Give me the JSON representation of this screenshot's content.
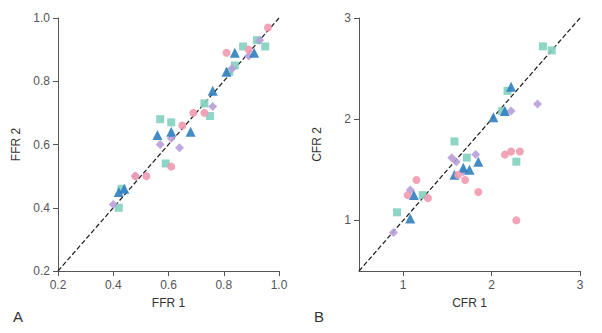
{
  "chart_data": [
    {
      "type": "scatter",
      "title": "A",
      "xlabel": "FFR 1",
      "ylabel": "FFR 2",
      "xlim": [
        0.2,
        1.0
      ],
      "ylim": [
        0.2,
        1.0
      ],
      "xticks": [
        0.2,
        0.4,
        0.6,
        0.8,
        {
          "value": 1.0,
          "label": "1.0"
        }
      ],
      "yticks": [
        0.2,
        0.4,
        0.6,
        0.8,
        {
          "value": 1.0,
          "label": "1.0"
        }
      ],
      "grid": false,
      "series": [
        {
          "type": "line",
          "line_style": "dashed",
          "color": "#1a1a1a",
          "x": [
            0.2,
            1.0
          ],
          "values": [
            0.2,
            1.0
          ]
        },
        {
          "type": "scatter",
          "marker": "square",
          "color": "#82d0c0",
          "x": [
            0.42,
            0.43,
            0.57,
            0.59,
            0.61,
            0.73,
            0.75,
            0.82,
            0.84,
            0.87,
            0.92,
            0.95
          ],
          "values": [
            0.4,
            0.46,
            0.68,
            0.54,
            0.67,
            0.73,
            0.69,
            0.83,
            0.85,
            0.91,
            0.93,
            0.91
          ]
        },
        {
          "type": "scatter",
          "marker": "diamond",
          "color": "#b8a0d8",
          "x": [
            0.4,
            0.48,
            0.57,
            0.61,
            0.64,
            0.76,
            0.83,
            0.89,
            0.93
          ],
          "values": [
            0.41,
            0.5,
            0.6,
            0.62,
            0.59,
            0.72,
            0.84,
            0.88,
            0.93
          ]
        },
        {
          "type": "scatter",
          "marker": "triangle",
          "color": "#3080c0",
          "x": [
            0.42,
            0.44,
            0.56,
            0.61,
            0.68,
            0.76,
            0.81,
            0.84,
            0.91
          ],
          "values": [
            0.45,
            0.46,
            0.63,
            0.64,
            0.64,
            0.77,
            0.83,
            0.89,
            0.89
          ]
        },
        {
          "type": "scatter",
          "marker": "circle",
          "color": "#f09ab0",
          "x": [
            0.48,
            0.52,
            0.61,
            0.65,
            0.69,
            0.73,
            0.81,
            0.89,
            0.96
          ],
          "values": [
            0.5,
            0.5,
            0.53,
            0.66,
            0.7,
            0.7,
            0.89,
            0.9,
            0.97
          ]
        }
      ]
    },
    {
      "type": "scatter",
      "title": "B",
      "xlabel": "CFR 1",
      "ylabel": "CFR 2",
      "xlim": [
        0.5,
        3.0
      ],
      "ylim": [
        0.5,
        3.0
      ],
      "xticks": [
        1,
        2,
        3
      ],
      "yticks": [
        1,
        2,
        3
      ],
      "grid": false,
      "series": [
        {
          "type": "line",
          "line_style": "dashed",
          "color": "#1a1a1a",
          "x": [
            0.5,
            3.0
          ],
          "values": [
            0.5,
            3.0
          ]
        },
        {
          "type": "scatter",
          "marker": "square",
          "color": "#82d0c0",
          "x": [
            0.93,
            1.22,
            1.58,
            1.72,
            2.12,
            2.18,
            2.28,
            2.58,
            2.68
          ],
          "values": [
            1.08,
            1.25,
            1.78,
            1.62,
            2.08,
            2.28,
            1.58,
            2.72,
            2.68
          ]
        },
        {
          "type": "scatter",
          "marker": "diamond",
          "color": "#b8a0d8",
          "x": [
            0.89,
            1.08,
            1.55,
            1.6,
            1.68,
            1.82,
            2.22,
            2.52
          ],
          "values": [
            0.88,
            1.3,
            1.62,
            1.58,
            1.48,
            1.65,
            2.08,
            2.15
          ]
        },
        {
          "type": "scatter",
          "marker": "triangle",
          "color": "#3080c0",
          "x": [
            1.08,
            1.12,
            1.58,
            1.68,
            1.75,
            1.85,
            2.02,
            2.15,
            2.22
          ],
          "values": [
            1.02,
            1.25,
            1.45,
            1.52,
            1.5,
            1.58,
            2.02,
            2.08,
            2.32
          ]
        },
        {
          "type": "scatter",
          "marker": "circle",
          "color": "#f09ab0",
          "x": [
            1.05,
            1.15,
            1.28,
            1.62,
            1.7,
            1.85,
            2.15,
            2.22,
            2.28,
            2.32
          ],
          "values": [
            1.25,
            1.4,
            1.22,
            1.45,
            1.4,
            1.28,
            1.65,
            1.68,
            1.0,
            1.68
          ]
        }
      ]
    }
  ]
}
